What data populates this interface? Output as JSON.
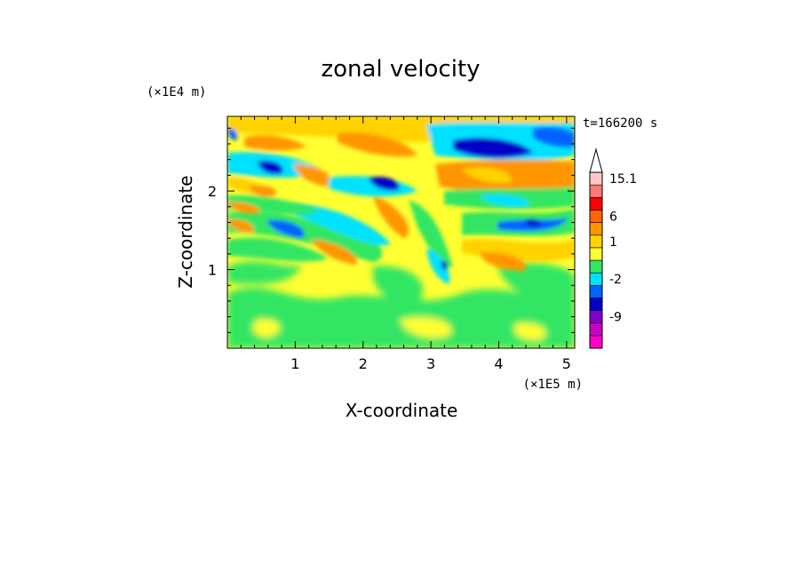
{
  "chart_data": {
    "type": "heatmap",
    "title": "zonal velocity",
    "xlabel": "X-coordinate",
    "ylabel": "Z-coordinate",
    "x_unit": "(×1E5 m)",
    "y_unit": "(×1E4 m)",
    "time_label": "t=166200 s",
    "xlim": [
      0,
      5.12
    ],
    "ylim": [
      0,
      2.95
    ],
    "x_ticks": [
      {
        "value": 1,
        "label": "1"
      },
      {
        "value": 2,
        "label": "2"
      },
      {
        "value": 3,
        "label": "3"
      },
      {
        "value": 4,
        "label": "4"
      },
      {
        "value": 5,
        "label": "5"
      }
    ],
    "y_ticks": [
      {
        "value": 1,
        "label": "1"
      },
      {
        "value": 2,
        "label": "2"
      }
    ],
    "colorbar": {
      "levels": [
        {
          "color": "#ff00c8"
        },
        {
          "color": "#c800c8"
        },
        {
          "color": "#8200c8"
        },
        {
          "color": "#0000c8"
        },
        {
          "color": "#0064ff"
        },
        {
          "color": "#00e1ff"
        },
        {
          "color": "#32e664"
        },
        {
          "color": "#ffff32"
        },
        {
          "color": "#ffd200"
        },
        {
          "color": "#ff9600"
        },
        {
          "color": "#ff6400"
        },
        {
          "color": "#ff0000"
        },
        {
          "color": "#ff7878"
        },
        {
          "color": "#ffc8c8"
        }
      ],
      "labels": [
        {
          "label": "-9",
          "level_index": 2
        },
        {
          "label": "-2",
          "level_index": 5
        },
        {
          "label": "1",
          "level_index": 8
        },
        {
          "label": "6",
          "level_index": 10
        },
        {
          "label": "15.1",
          "level_index": 13
        }
      ],
      "top_arrow": true
    },
    "field_regions": [
      {
        "x": 0.9,
        "z": 2.4,
        "color": "#ff9600"
      },
      {
        "x": 1.2,
        "z": 2.7,
        "color": "#ffd200"
      },
      {
        "x": 0.6,
        "z": 2.3,
        "color": "#0000c8"
      },
      {
        "x": 1.0,
        "z": 2.15,
        "color": "#00e1ff"
      },
      {
        "x": 2.2,
        "z": 2.1,
        "color": "#0000c8"
      },
      {
        "x": 3.8,
        "z": 2.55,
        "color": "#0000c8"
      },
      {
        "x": 4.8,
        "z": 2.65,
        "color": "#0064ff"
      },
      {
        "x": 4.2,
        "z": 2.1,
        "color": "#ff9600"
      },
      {
        "x": 3.2,
        "z": 1.1,
        "color": "#0000c8"
      },
      {
        "x": 4.6,
        "z": 1.65,
        "color": "#0000c8"
      },
      {
        "x": 0.3,
        "z": 1.5,
        "color": "#ff9600"
      },
      {
        "x": 3.0,
        "z": 0.3,
        "color": "#32e664"
      }
    ]
  }
}
